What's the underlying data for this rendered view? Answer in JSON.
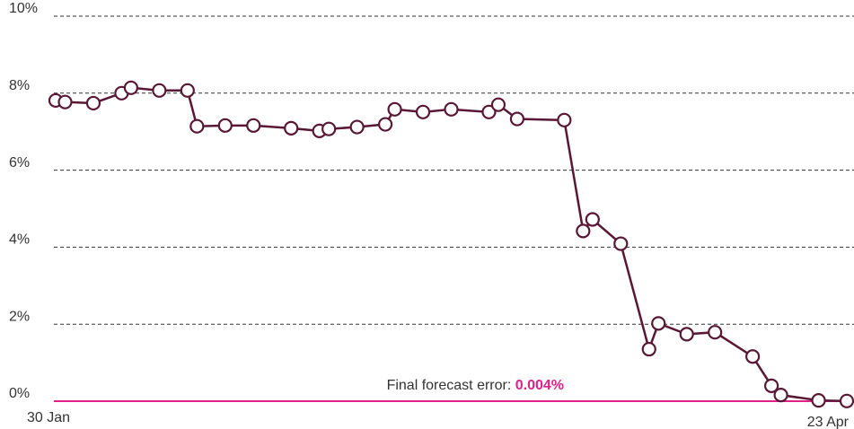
{
  "chart_data": {
    "type": "line",
    "x": [
      0,
      1,
      4,
      7,
      8,
      11,
      14,
      15,
      18,
      21,
      25,
      28,
      29,
      32,
      35,
      36,
      39,
      42,
      46,
      47,
      49,
      54,
      56,
      57,
      60,
      63,
      64,
      67,
      70,
      74,
      76,
      77,
      81,
      84
    ],
    "series": [
      {
        "color": "#5a1735",
        "values": [
          7.81,
          7.77,
          7.74,
          8.0,
          8.14,
          8.07,
          8.07,
          7.14,
          7.16,
          7.16,
          7.09,
          7.02,
          7.07,
          7.12,
          7.19,
          7.58,
          7.51,
          7.58,
          7.51,
          7.7,
          7.33,
          7.3,
          4.42,
          4.72,
          4.09,
          1.35,
          2.02,
          1.74,
          1.79,
          1.16,
          0.4,
          0.16,
          0.02,
          0.004
        ]
      }
    ],
    "xlim": [
      0,
      84
    ],
    "xticks": [
      {
        "value": 0,
        "label": "30 Jan"
      },
      {
        "value": 84,
        "label": "23 Apr"
      }
    ],
    "ylim": [
      0,
      10
    ],
    "yticks": [
      {
        "value": 0,
        "label": "0%"
      },
      {
        "value": 2,
        "label": "2%"
      },
      {
        "value": 4,
        "label": "4%"
      },
      {
        "value": 6,
        "label": "6%"
      },
      {
        "value": 8,
        "label": "8%"
      },
      {
        "value": 10,
        "label": "10%"
      }
    ],
    "grid": true,
    "zero_line_color": "#e0218a",
    "annotation": {
      "text": "Final forecast error: ",
      "highlight": "0.004%"
    }
  }
}
